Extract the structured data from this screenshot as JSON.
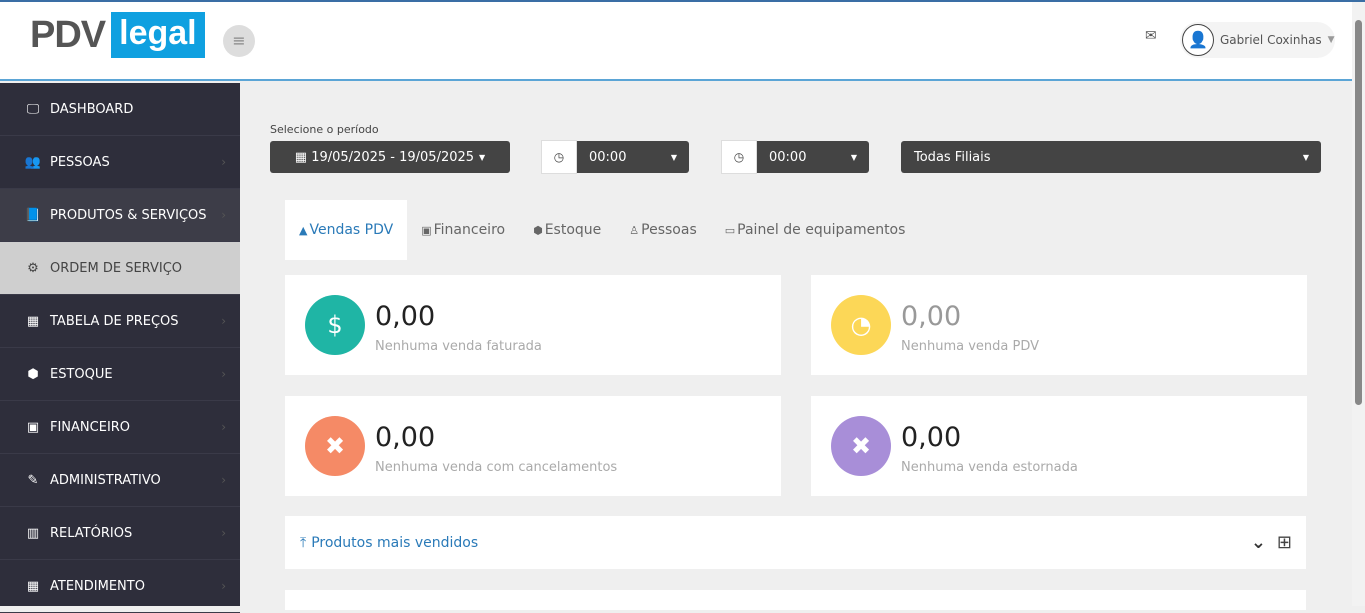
{
  "header": {
    "logo_left": "PDV",
    "logo_right": "legal",
    "user_name": "Gabriel Coxinhas",
    "menu_icon": "hamburger-icon",
    "mail_icon": "envelope-icon"
  },
  "sidebar": {
    "items": [
      {
        "label": "DASHBOARD",
        "icon": "🖵"
      },
      {
        "label": "PESSOAS",
        "icon": "👥"
      },
      {
        "label": "PRODUTOS & SERVIÇOS",
        "icon": "📘"
      },
      {
        "label": "ORDEM DE SERVIÇO",
        "icon": "⚙"
      },
      {
        "label": "TABELA DE PREÇOS",
        "icon": "▦"
      },
      {
        "label": "ESTOQUE",
        "icon": "⬢"
      },
      {
        "label": "FINANCEIRO",
        "icon": "▣"
      },
      {
        "label": "ADMINISTRATIVO",
        "icon": "✎"
      },
      {
        "label": "RELATÓRIOS",
        "icon": "▥"
      },
      {
        "label": "ATENDIMENTO",
        "icon": "▦"
      }
    ]
  },
  "filters": {
    "period_label": "Selecione o período",
    "date_range": "19/05/2025 - 19/05/2025",
    "time_start": "00:00",
    "time_end": "00:00",
    "branch": "Todas Filiais"
  },
  "tabs": [
    {
      "label": "Vendas PDV",
      "icon": "▲"
    },
    {
      "label": "Financeiro",
      "icon": "▣"
    },
    {
      "label": "Estoque",
      "icon": "⬢"
    },
    {
      "label": "Pessoas",
      "icon": "♙"
    },
    {
      "label": "Painel de equipamentos",
      "icon": "▭"
    }
  ],
  "cards": [
    {
      "value": "0,00",
      "text": "Nenhuma venda faturada",
      "color": "#1fb5a5",
      "icon": "money-icon"
    },
    {
      "value": "0,00",
      "text": "Nenhuma venda PDV",
      "color": "#fcd757",
      "icon": "dashboard-gauge-icon"
    },
    {
      "value": "0,00",
      "text": "Nenhuma venda com cancelamentos",
      "color": "#f58a66",
      "icon": "close-icon"
    },
    {
      "value": "0,00",
      "text": "Nenhuma venda estornada",
      "color": "#a88ed8",
      "icon": "close-icon"
    }
  ],
  "sections": {
    "top_products": "Produtos mais vendidos"
  }
}
